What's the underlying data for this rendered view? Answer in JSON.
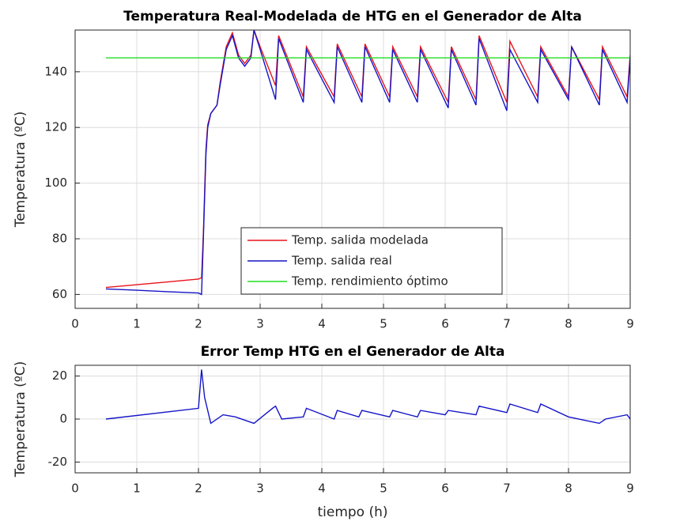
{
  "chart_data": [
    {
      "type": "line",
      "title": "Temperatura Real-Modelada de HTG en el Generador de Alta",
      "ylabel": "Temperatura (ºC)",
      "xlim": [
        0,
        9
      ],
      "xticks": [
        0,
        1,
        2,
        3,
        4,
        5,
        6,
        7,
        8,
        9
      ],
      "ylim": [
        55,
        155
      ],
      "yticks": [
        60,
        80,
        100,
        120,
        140
      ],
      "grid": true,
      "legend": "lower center",
      "series": [
        {
          "name": "Temp. salida modelada",
          "color": "#e8141c",
          "x": [
            0.5,
            1,
            1.5,
            2,
            2.05,
            2.08,
            2.12,
            2.15,
            2.2,
            2.3,
            2.35,
            2.45,
            2.55,
            2.65,
            2.75,
            2.85,
            2.9,
            3.0,
            3.25,
            3.3,
            3.7,
            3.75,
            4.2,
            4.25,
            4.65,
            4.7,
            5.1,
            5.15,
            5.55,
            5.6,
            6.05,
            6.1,
            6.5,
            6.55,
            7.0,
            7.05,
            7.5,
            7.55,
            8.0,
            8.05,
            8.5,
            8.55,
            8.95,
            9.0
          ],
          "values": [
            62.5,
            63.5,
            64.5,
            65.5,
            66,
            82,
            112,
            121,
            125,
            128,
            136,
            149,
            154,
            146,
            143,
            146,
            155,
            149,
            135,
            153,
            131,
            149,
            131,
            150,
            131,
            150,
            131,
            149,
            131,
            149,
            129,
            149,
            130,
            153,
            129,
            151,
            131,
            149,
            131,
            149,
            130,
            149,
            131,
            146
          ]
        },
        {
          "name": "Temp. salida real",
          "color": "#1414c8",
          "x": [
            0.5,
            1,
            1.5,
            2,
            2.05,
            2.08,
            2.12,
            2.15,
            2.2,
            2.3,
            2.35,
            2.45,
            2.55,
            2.65,
            2.75,
            2.85,
            2.9,
            3.0,
            3.25,
            3.3,
            3.7,
            3.75,
            4.2,
            4.25,
            4.65,
            4.7,
            5.1,
            5.15,
            5.55,
            5.6,
            6.05,
            6.1,
            6.5,
            6.55,
            7.0,
            7.05,
            7.5,
            7.55,
            8.0,
            8.05,
            8.5,
            8.55,
            8.95,
            9.0
          ],
          "values": [
            62,
            61.5,
            61,
            60.5,
            60,
            80,
            110,
            120,
            125,
            128,
            135,
            148,
            153,
            145,
            142,
            145,
            155,
            148,
            130,
            152,
            129,
            148,
            129,
            149,
            129,
            149,
            129,
            148,
            129,
            148,
            127,
            148,
            128,
            152,
            126,
            148,
            129,
            148,
            130,
            149,
            128,
            148,
            129,
            145
          ]
        },
        {
          "name": "Temp. rendimiento óptimo",
          "color": "#22dd22",
          "x": [
            0.5,
            9
          ],
          "values": [
            145,
            145
          ]
        }
      ]
    },
    {
      "type": "line",
      "title": "Error Temp HTG en el Generador de Alta",
      "ylabel": "Temperatura (ºC)",
      "xlabel": "tiempo (h)",
      "xlim": [
        0,
        9
      ],
      "xticks": [
        0,
        1,
        2,
        3,
        4,
        5,
        6,
        7,
        8,
        9
      ],
      "ylim": [
        -25,
        25
      ],
      "yticks": [
        -20,
        0,
        20
      ],
      "grid": true,
      "series": [
        {
          "color": "#1414c8",
          "x": [
            0.5,
            2.0,
            2.05,
            2.1,
            2.2,
            2.4,
            2.6,
            2.9,
            3.2,
            3.25,
            3.35,
            3.7,
            3.75,
            4.2,
            4.25,
            4.6,
            4.65,
            5.1,
            5.15,
            5.55,
            5.6,
            6.0,
            6.05,
            6.5,
            6.55,
            7.0,
            7.05,
            7.5,
            7.55,
            8.0,
            8.5,
            8.6,
            8.95,
            9.0
          ],
          "values": [
            0,
            5,
            23,
            10,
            -2,
            2,
            1,
            -2,
            5,
            6,
            0,
            1,
            5,
            0,
            4,
            1,
            4,
            1,
            4,
            1,
            4,
            2,
            4,
            2,
            6,
            3,
            7,
            3,
            7,
            1,
            -2,
            0,
            2,
            0
          ]
        }
      ]
    }
  ]
}
